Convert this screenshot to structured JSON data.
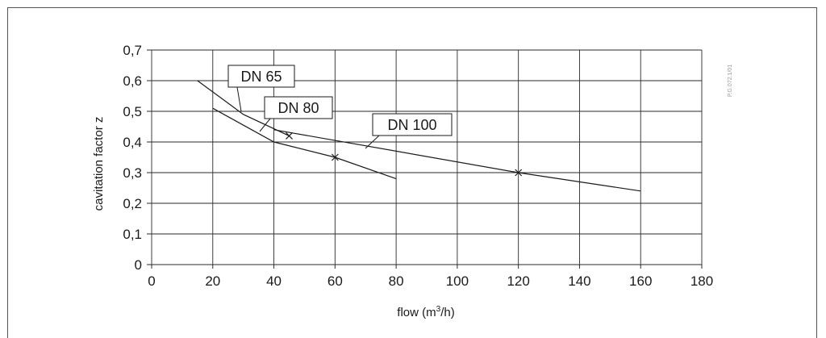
{
  "chart_data": {
    "type": "line",
    "xlabel_prefix": "flow (m",
    "xlabel_sup": "3",
    "xlabel_suffix": "/h)",
    "ylabel": "cavitation factor z",
    "xlim": [
      0,
      180
    ],
    "ylim": [
      0,
      0.7
    ],
    "x_ticks": [
      0,
      20,
      40,
      60,
      80,
      100,
      120,
      140,
      160,
      180
    ],
    "x_tick_labels": [
      "0",
      "20",
      "40",
      "60",
      "80",
      "100",
      "120",
      "140",
      "160",
      "180"
    ],
    "y_ticks": [
      0,
      0.1,
      0.2,
      0.3,
      0.4,
      0.5,
      0.6,
      0.7
    ],
    "y_tick_labels": [
      "0",
      "0,1",
      "0,2",
      "0,3",
      "0,4",
      "0,5",
      "0,6",
      "0,7"
    ],
    "grid": true,
    "series": [
      {
        "name": "DN 65",
        "x": [
          15,
          30,
          45
        ],
        "y": [
          0.6,
          0.49,
          0.42
        ],
        "marker_index": 2
      },
      {
        "name": "DN 80",
        "x": [
          20,
          40,
          60,
          80
        ],
        "y": [
          0.51,
          0.4,
          0.35,
          0.28
        ],
        "marker_index": 2
      },
      {
        "name": "DN 100",
        "x": [
          40,
          120,
          160
        ],
        "y": [
          0.44,
          0.3,
          0.24
        ],
        "marker_index": 1
      }
    ]
  },
  "watermark": "P.G.072.1/01"
}
